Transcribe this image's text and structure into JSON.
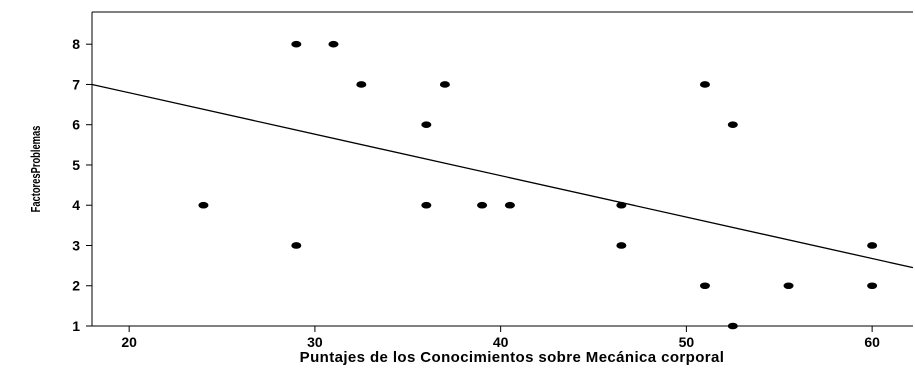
{
  "chart_data": {
    "type": "scatter",
    "title": "",
    "xlabel": "Puntajes de los Conocimientos sobre Mecánica corporal",
    "ylabel": "FactoresProblemas",
    "xlim": [
      18,
      62.2
    ],
    "ylim": [
      1,
      8.8
    ],
    "x_ticks": [
      20,
      30,
      40,
      50,
      60
    ],
    "y_ticks": [
      1,
      2,
      3,
      4,
      5,
      6,
      7,
      8
    ],
    "grid": false,
    "legend": "none",
    "point_color": "#000000",
    "series": [
      {
        "points": [
          {
            "x": 24,
            "y": 4
          },
          {
            "x": 29,
            "y": 8
          },
          {
            "x": 29,
            "y": 3
          },
          {
            "x": 31,
            "y": 8
          },
          {
            "x": 32.5,
            "y": 7
          },
          {
            "x": 36,
            "y": 6
          },
          {
            "x": 36,
            "y": 4
          },
          {
            "x": 37,
            "y": 7
          },
          {
            "x": 39,
            "y": 4
          },
          {
            "x": 40.5,
            "y": 4
          },
          {
            "x": 46.5,
            "y": 4
          },
          {
            "x": 46.5,
            "y": 3
          },
          {
            "x": 51,
            "y": 7
          },
          {
            "x": 51,
            "y": 2
          },
          {
            "x": 52.5,
            "y": 6
          },
          {
            "x": 52.5,
            "y": 1
          },
          {
            "x": 55.5,
            "y": 2
          },
          {
            "x": 60,
            "y": 3
          },
          {
            "x": 60,
            "y": 2
          }
        ]
      }
    ],
    "fit_line": {
      "x": [
        18,
        62.2
      ],
      "y": [
        7.0,
        2.45
      ]
    }
  }
}
